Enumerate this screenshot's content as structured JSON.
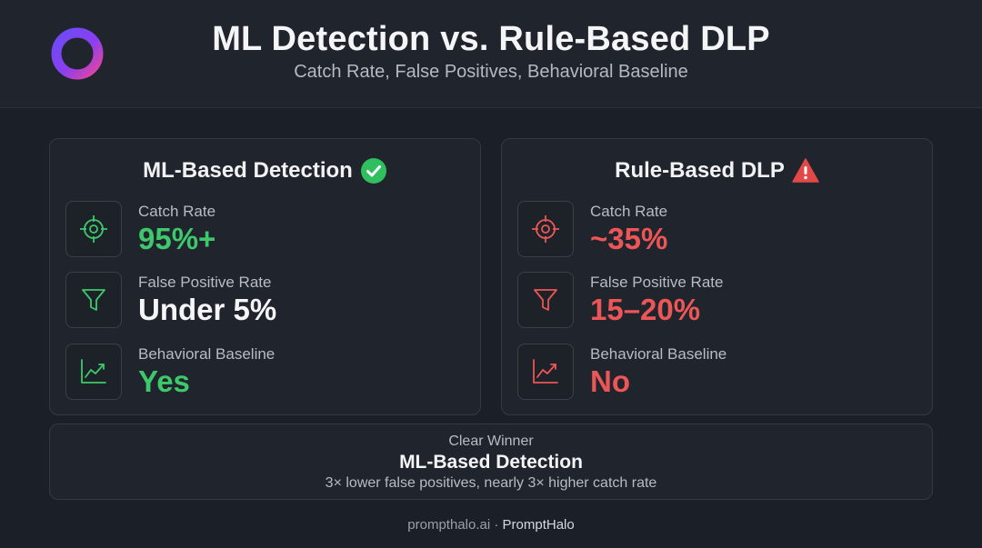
{
  "header": {
    "title": "ML Detection vs. Rule-Based DLP",
    "subtitle": "Catch Rate, False Positives, Behavioral Baseline",
    "logo_icon": "ring-logo-icon"
  },
  "ml_card": {
    "title": "ML-Based Detection",
    "badge_icon": "check-circle-icon",
    "metrics": [
      {
        "label": "Catch Rate",
        "value": "95%+",
        "icon": "target-icon",
        "color": "#3ec86b"
      },
      {
        "label": "False Positive Rate",
        "value": "Under 5%",
        "icon": "filter-icon",
        "color": "#f5f6f8"
      },
      {
        "label": "Behavioral Baseline",
        "value": "Yes",
        "icon": "trend-chart-icon",
        "color": "#3ec86b"
      }
    ]
  },
  "rule_card": {
    "title": "Rule-Based DLP",
    "badge_icon": "warning-triangle-icon",
    "metrics": [
      {
        "label": "Catch Rate",
        "value": "~35%",
        "icon": "target-icon",
        "color": "#ec5656"
      },
      {
        "label": "False Positive Rate",
        "value": "15–20%",
        "icon": "filter-icon",
        "color": "#ec5656"
      },
      {
        "label": "Behavioral Baseline",
        "value": "No",
        "icon": "trend-chart-icon",
        "color": "#ec5656"
      }
    ]
  },
  "summary": {
    "label": "Clear Winner",
    "winner": "ML-Based Detection",
    "description": "3× lower false positives, nearly 3× higher catch rate"
  },
  "footer": {
    "site": "prompthalo.ai",
    "separator": " · ",
    "brand": "PromptHalo"
  },
  "colors": {
    "accent_green": "#3ec86b",
    "accent_red": "#ec5656",
    "background": "#1b1f27",
    "card": "#20242c"
  }
}
